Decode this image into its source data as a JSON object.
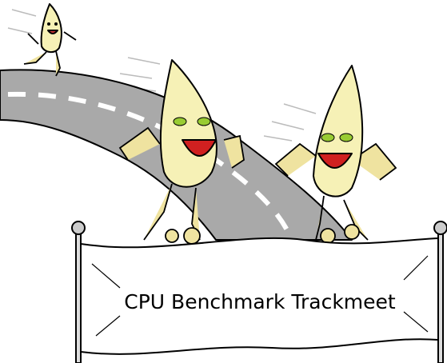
{
  "banner": {
    "text": "CPU Benchmark Trackmeet"
  }
}
